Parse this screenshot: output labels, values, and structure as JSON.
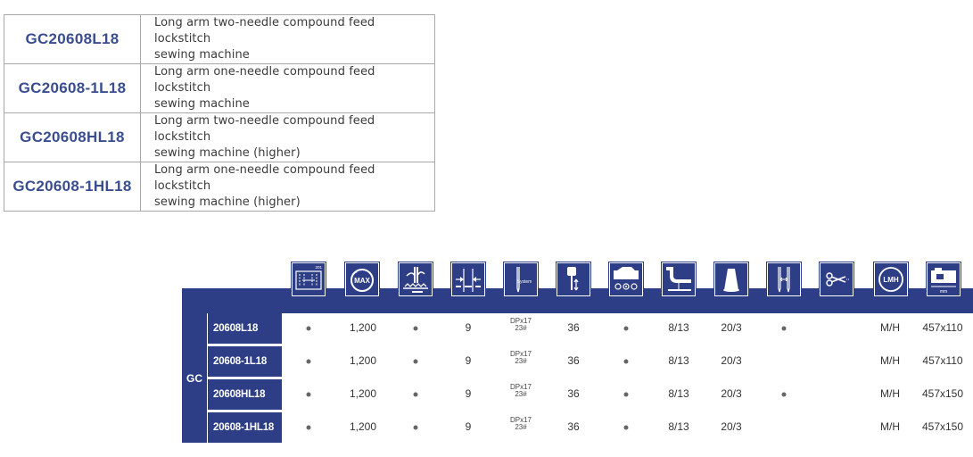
{
  "models": [
    {
      "code": "GC20608L18",
      "desc_line1": "Long arm two-needle compound feed lockstitch",
      "desc_line2": "sewing machine"
    },
    {
      "code": "GC20608-1L18",
      "desc_line1": "Long arm one-needle compound feed lockstitch",
      "desc_line2": "sewing machine"
    },
    {
      "code": "GC20608HL18",
      "desc_line1": "Long arm two-needle compound feed lockstitch",
      "desc_line2": "sewing machine (higher)"
    },
    {
      "code": "GC20608-1HL18",
      "desc_line1": "Long arm one-needle compound feed lockstitch",
      "desc_line2": "sewing machine (higher)"
    }
  ],
  "spec": {
    "group_label": "GC",
    "icons": [
      {
        "name": "double-needle-stitch-icon",
        "label": "201"
      },
      {
        "name": "max-speed-icon",
        "label": "MAX"
      },
      {
        "name": "compound-feed-icon",
        "label": ""
      },
      {
        "name": "stitch-length-icon",
        "label": ""
      },
      {
        "name": "needle-system-icon",
        "label": "System"
      },
      {
        "name": "presser-foot-lift-icon",
        "label": ""
      },
      {
        "name": "hook-icon",
        "label": ""
      },
      {
        "name": "foot-height-icon",
        "label": ""
      },
      {
        "name": "thread-cone-icon",
        "label": ""
      },
      {
        "name": "needle-gauge-icon",
        "label": ""
      },
      {
        "name": "thread-trimmer-icon",
        "label": ""
      },
      {
        "name": "material-weight-icon",
        "label": "LMH"
      },
      {
        "name": "table-size-icon",
        "label": "mm"
      }
    ],
    "rows": [
      {
        "model": "20608L18",
        "double": "•",
        "speed": "1,200",
        "feed": "•",
        "stitch": "9",
        "needle_top": "DPx17",
        "needle_bot": "23#",
        "lift": "36",
        "hook": "•",
        "foot": "8/13",
        "thread": "20/3",
        "gauge": "•",
        "material": "M/H",
        "size": "457x110"
      },
      {
        "model": "20608-1L18",
        "double": "•",
        "speed": "1,200",
        "feed": "•",
        "stitch": "9",
        "needle_top": "DPx17",
        "needle_bot": "23#",
        "lift": "36",
        "hook": "•",
        "foot": "8/13",
        "thread": "20/3",
        "gauge": "",
        "material": "M/H",
        "size": "457x110"
      },
      {
        "model": "20608HL18",
        "double": "•",
        "speed": "1,200",
        "feed": "•",
        "stitch": "9",
        "needle_top": "DPx17",
        "needle_bot": "23#",
        "lift": "36",
        "hook": "•",
        "foot": "8/13",
        "thread": "20/3",
        "gauge": "•",
        "material": "M/H",
        "size": "457x150"
      },
      {
        "model": "20608-1HL18",
        "double": "•",
        "speed": "1,200",
        "feed": "•",
        "stitch": "9",
        "needle_top": "DPx17",
        "needle_bot": "23#",
        "lift": "36",
        "hook": "•",
        "foot": "8/13",
        "thread": "20/3",
        "gauge": "",
        "material": "M/H",
        "size": "457x150"
      }
    ]
  }
}
